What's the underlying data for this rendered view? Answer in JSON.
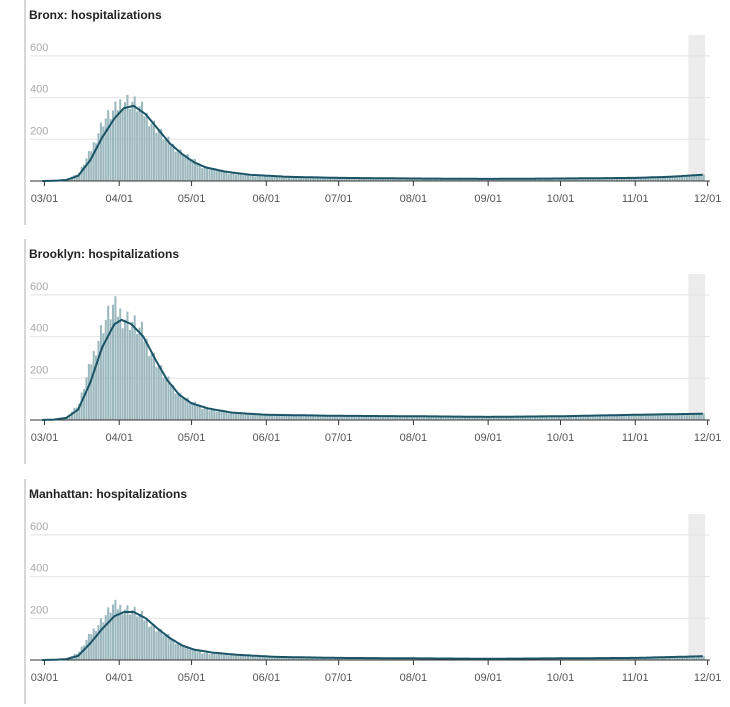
{
  "colors": {
    "bars": "#9ab8bd",
    "average_line": "#1a5466",
    "gridline": "#e3e3e3",
    "axis": "#333333",
    "recent_band": "#ececec"
  },
  "x_axis": {
    "start": "2020-02-24",
    "end": "2020-12-02",
    "tick_labels": [
      "03/01",
      "04/01",
      "05/01",
      "06/01",
      "07/01",
      "08/01",
      "09/01",
      "10/01",
      "11/01",
      "12/01"
    ],
    "tick_dates": [
      "2020-03-01",
      "2020-04-01",
      "2020-05-01",
      "2020-06-01",
      "2020-07-01",
      "2020-08-01",
      "2020-09-01",
      "2020-10-01",
      "2020-11-01",
      "2020-12-01"
    ],
    "shaded_from": "2020-11-23",
    "shaded_to": "2020-11-30"
  },
  "chart_data": [
    {
      "type": "bar",
      "title": "Bronx: hospitalizations",
      "ylim": [
        0,
        700
      ],
      "yticks": [
        200,
        400,
        600
      ],
      "grid": true,
      "series": [
        {
          "kind": "daily",
          "points": [
            [
              "2020-02-29",
              0
            ],
            [
              "2020-03-05",
              2
            ],
            [
              "2020-03-10",
              8
            ],
            [
              "2020-03-15",
              40
            ],
            [
              "2020-03-20",
              150
            ],
            [
              "2020-03-25",
              290
            ],
            [
              "2020-03-30",
              340
            ],
            [
              "2020-04-02",
              390
            ],
            [
              "2020-04-06",
              380
            ],
            [
              "2020-04-10",
              340
            ],
            [
              "2020-04-15",
              270
            ],
            [
              "2020-04-20",
              200
            ],
            [
              "2020-04-25",
              150
            ],
            [
              "2020-04-30",
              110
            ],
            [
              "2020-05-05",
              70
            ],
            [
              "2020-05-10",
              55
            ],
            [
              "2020-05-15",
              40
            ],
            [
              "2020-05-25",
              25
            ],
            [
              "2020-06-10",
              20
            ],
            [
              "2020-07-01",
              15
            ],
            [
              "2020-08-01",
              12
            ],
            [
              "2020-09-01",
              10
            ],
            [
              "2020-10-01",
              12
            ],
            [
              "2020-11-01",
              15
            ],
            [
              "2020-11-29",
              30
            ]
          ]
        },
        {
          "kind": "average",
          "points": [
            [
              "2020-02-29",
              0
            ],
            [
              "2020-03-05",
              1
            ],
            [
              "2020-03-10",
              5
            ],
            [
              "2020-03-15",
              25
            ],
            [
              "2020-03-20",
              100
            ],
            [
              "2020-03-25",
              210
            ],
            [
              "2020-03-30",
              300
            ],
            [
              "2020-04-03",
              350
            ],
            [
              "2020-04-07",
              360
            ],
            [
              "2020-04-12",
              320
            ],
            [
              "2020-04-17",
              250
            ],
            [
              "2020-04-22",
              180
            ],
            [
              "2020-04-27",
              130
            ],
            [
              "2020-05-02",
              90
            ],
            [
              "2020-05-07",
              65
            ],
            [
              "2020-05-15",
              45
            ],
            [
              "2020-05-25",
              30
            ],
            [
              "2020-06-10",
              20
            ],
            [
              "2020-07-01",
              15
            ],
            [
              "2020-08-01",
              12
            ],
            [
              "2020-09-01",
              10
            ],
            [
              "2020-10-01",
              12
            ],
            [
              "2020-11-01",
              15
            ],
            [
              "2020-11-15",
              20
            ],
            [
              "2020-11-29",
              30
            ]
          ]
        }
      ]
    },
    {
      "type": "bar",
      "title": "Brooklyn: hospitalizations",
      "ylim": [
        0,
        700
      ],
      "yticks": [
        200,
        400,
        600
      ],
      "grid": true,
      "series": [
        {
          "kind": "daily",
          "points": [
            [
              "2020-02-29",
              0
            ],
            [
              "2020-03-05",
              3
            ],
            [
              "2020-03-10",
              15
            ],
            [
              "2020-03-15",
              80
            ],
            [
              "2020-03-20",
              280
            ],
            [
              "2020-03-25",
              460
            ],
            [
              "2020-03-29",
              540
            ],
            [
              "2020-04-02",
              500
            ],
            [
              "2020-04-06",
              470
            ],
            [
              "2020-04-10",
              420
            ],
            [
              "2020-04-15",
              300
            ],
            [
              "2020-04-20",
              200
            ],
            [
              "2020-04-25",
              130
            ],
            [
              "2020-04-30",
              90
            ],
            [
              "2020-05-05",
              60
            ],
            [
              "2020-05-10",
              45
            ],
            [
              "2020-05-20",
              30
            ],
            [
              "2020-06-01",
              25
            ],
            [
              "2020-07-01",
              20
            ],
            [
              "2020-08-01",
              18
            ],
            [
              "2020-09-01",
              15
            ],
            [
              "2020-10-01",
              18
            ],
            [
              "2020-11-01",
              25
            ],
            [
              "2020-11-29",
              30
            ]
          ]
        },
        {
          "kind": "average",
          "points": [
            [
              "2020-02-29",
              0
            ],
            [
              "2020-03-05",
              2
            ],
            [
              "2020-03-10",
              10
            ],
            [
              "2020-03-15",
              50
            ],
            [
              "2020-03-20",
              180
            ],
            [
              "2020-03-25",
              350
            ],
            [
              "2020-03-30",
              460
            ],
            [
              "2020-04-02",
              480
            ],
            [
              "2020-04-06",
              460
            ],
            [
              "2020-04-11",
              400
            ],
            [
              "2020-04-16",
              290
            ],
            [
              "2020-04-21",
              190
            ],
            [
              "2020-04-26",
              120
            ],
            [
              "2020-05-01",
              80
            ],
            [
              "2020-05-08",
              55
            ],
            [
              "2020-05-18",
              35
            ],
            [
              "2020-06-01",
              25
            ],
            [
              "2020-07-01",
              20
            ],
            [
              "2020-08-01",
              18
            ],
            [
              "2020-09-01",
              15
            ],
            [
              "2020-10-01",
              18
            ],
            [
              "2020-11-01",
              25
            ],
            [
              "2020-11-29",
              30
            ]
          ]
        }
      ]
    },
    {
      "type": "bar",
      "title": "Manhattan: hospitalizations",
      "ylim": [
        0,
        700
      ],
      "yticks": [
        200,
        400,
        600
      ],
      "grid": true,
      "series": [
        {
          "kind": "daily",
          "points": [
            [
              "2020-02-29",
              0
            ],
            [
              "2020-03-05",
              2
            ],
            [
              "2020-03-10",
              6
            ],
            [
              "2020-03-15",
              40
            ],
            [
              "2020-03-20",
              130
            ],
            [
              "2020-03-25",
              200
            ],
            [
              "2020-03-29",
              260
            ],
            [
              "2020-04-02",
              250
            ],
            [
              "2020-04-06",
              240
            ],
            [
              "2020-04-10",
              210
            ],
            [
              "2020-04-15",
              160
            ],
            [
              "2020-04-20",
              120
            ],
            [
              "2020-04-25",
              80
            ],
            [
              "2020-04-30",
              55
            ],
            [
              "2020-05-05",
              35
            ],
            [
              "2020-05-15",
              25
            ],
            [
              "2020-06-01",
              15
            ],
            [
              "2020-07-01",
              10
            ],
            [
              "2020-08-01",
              8
            ],
            [
              "2020-09-01",
              6
            ],
            [
              "2020-10-01",
              8
            ],
            [
              "2020-11-01",
              10
            ],
            [
              "2020-11-29",
              18
            ]
          ]
        },
        {
          "kind": "average",
          "points": [
            [
              "2020-02-29",
              0
            ],
            [
              "2020-03-05",
              1
            ],
            [
              "2020-03-10",
              4
            ],
            [
              "2020-03-15",
              20
            ],
            [
              "2020-03-20",
              80
            ],
            [
              "2020-03-25",
              150
            ],
            [
              "2020-03-30",
              210
            ],
            [
              "2020-04-03",
              230
            ],
            [
              "2020-04-07",
              230
            ],
            [
              "2020-04-12",
              200
            ],
            [
              "2020-04-17",
              150
            ],
            [
              "2020-04-22",
              105
            ],
            [
              "2020-04-27",
              70
            ],
            [
              "2020-05-02",
              50
            ],
            [
              "2020-05-10",
              35
            ],
            [
              "2020-05-20",
              25
            ],
            [
              "2020-06-05",
              15
            ],
            [
              "2020-07-01",
              10
            ],
            [
              "2020-08-01",
              8
            ],
            [
              "2020-09-01",
              6
            ],
            [
              "2020-10-01",
              8
            ],
            [
              "2020-11-01",
              10
            ],
            [
              "2020-11-29",
              18
            ]
          ]
        }
      ]
    }
  ]
}
